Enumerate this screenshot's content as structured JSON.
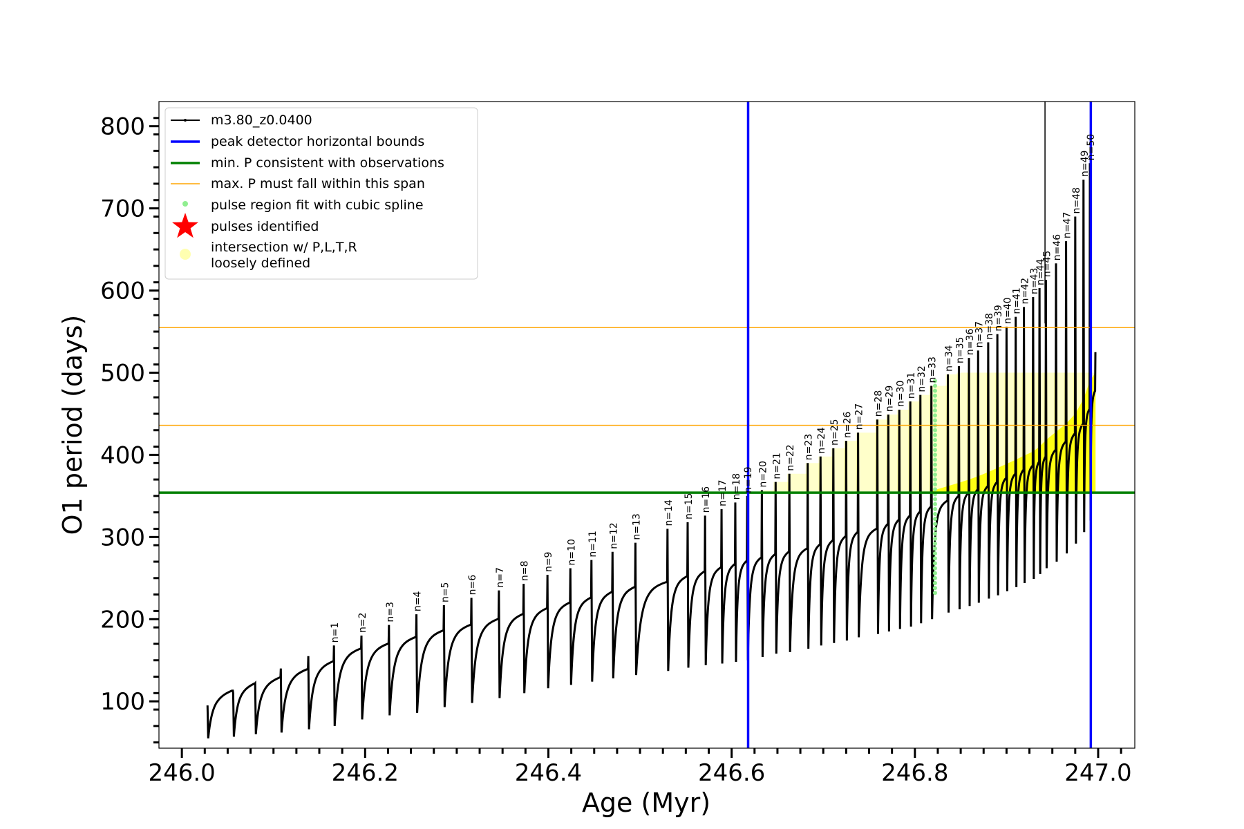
{
  "chart_data": {
    "type": "line",
    "xlabel": "Age (Myr)",
    "ylabel": "O1 period (days)",
    "xlim": [
      245.975,
      247.04
    ],
    "ylim": [
      43,
      830
    ],
    "x_ticks": [
      246.0,
      246.2,
      246.4,
      246.6,
      246.8,
      247.0
    ],
    "x_tick_labels": [
      "246.0",
      "246.2",
      "246.4",
      "246.6",
      "246.8",
      "247.0"
    ],
    "y_ticks": [
      100,
      200,
      300,
      400,
      500,
      600,
      700,
      800
    ],
    "y_tick_labels": [
      "100",
      "200",
      "300",
      "400",
      "500",
      "600",
      "700",
      "800"
    ],
    "grid": false,
    "legend_position": "top-left",
    "legend": [
      {
        "label": "m3.80_z0.0400",
        "kind": "line-marker",
        "color": "#000000"
      },
      {
        "label": "peak detector horizontal bounds",
        "kind": "line",
        "color": "#0000ff"
      },
      {
        "label": "min. P consistent with observations",
        "kind": "line",
        "color": "#008000"
      },
      {
        "label": "max. P must fall within this span",
        "kind": "thin-line",
        "color": "#ffa500"
      },
      {
        "label": "pulse region fit with cubic spline",
        "kind": "dot",
        "color": "#90ee90"
      },
      {
        "label": "pulses identified",
        "kind": "star",
        "color": "#ff0000"
      },
      {
        "label": "intersection w/ P,L,T,R",
        "label2": "loosely defined",
        "kind": "circle",
        "color": "#ffffb0"
      }
    ],
    "vertical_lines": [
      {
        "x": 246.618,
        "color": "#0000ff",
        "role": "peak detector bound"
      },
      {
        "x": 246.992,
        "color": "#0000ff",
        "role": "peak detector bound"
      },
      {
        "x": 246.942,
        "y_from": 560,
        "color": "#000000",
        "role": "track spike"
      }
    ],
    "horizontal_lines": [
      {
        "y": 354,
        "color": "#008000",
        "role": "min P"
      },
      {
        "y": 436,
        "color": "#ffa500",
        "role": "max P lower"
      },
      {
        "y": 555,
        "color": "#ffa500",
        "role": "max P upper"
      }
    ],
    "spline_region": {
      "x": 246.822,
      "y_range": [
        232,
        495
      ],
      "color": "#90ee90"
    },
    "series": [
      {
        "name": "m3.80_z0.0400",
        "color": "#000000",
        "pulses": [
          {
            "n": 1,
            "age": 246.166,
            "peak": 168,
            "base": 70,
            "dip": 136
          },
          {
            "n": 2,
            "age": 246.196,
            "peak": 180,
            "base": 78,
            "dip": 142
          },
          {
            "n": 3,
            "age": 246.226,
            "peak": 193,
            "base": 83,
            "dip": 150
          },
          {
            "n": 4,
            "age": 246.256,
            "peak": 206,
            "base": 86,
            "dip": 158
          },
          {
            "n": 5,
            "age": 246.286,
            "peak": 217,
            "base": 93,
            "dip": 165
          },
          {
            "n": 6,
            "age": 246.316,
            "peak": 226,
            "base": 98,
            "dip": 172
          },
          {
            "n": 7,
            "age": 246.346,
            "peak": 235,
            "base": 104,
            "dip": 178
          },
          {
            "n": 8,
            "age": 246.373,
            "peak": 243,
            "base": 110,
            "dip": 185
          },
          {
            "n": 9,
            "age": 246.399,
            "peak": 254,
            "base": 116,
            "dip": 192
          },
          {
            "n": 10,
            "age": 246.424,
            "peak": 262,
            "base": 120,
            "dip": 198
          },
          {
            "n": 11,
            "age": 246.447,
            "peak": 272,
            "base": 124,
            "dip": 205
          },
          {
            "n": 12,
            "age": 246.47,
            "peak": 282,
            "base": 128,
            "dip": 211
          },
          {
            "n": 13,
            "age": 246.495,
            "peak": 293,
            "base": 132,
            "dip": 217
          },
          {
            "n": 14,
            "age": 246.53,
            "peak": 310,
            "base": 137,
            "dip": 224
          },
          {
            "n": 15,
            "age": 246.552,
            "peak": 318,
            "base": 141,
            "dip": 230
          },
          {
            "n": 16,
            "age": 246.571,
            "peak": 326,
            "base": 144,
            "dip": 235
          },
          {
            "n": 17,
            "age": 246.589,
            "peak": 334,
            "base": 146,
            "dip": 239
          },
          {
            "n": 18,
            "age": 246.604,
            "peak": 342,
            "base": 148,
            "dip": 243
          },
          {
            "n": 19,
            "age": 246.617,
            "peak": 350,
            "base": 150,
            "dip": 247
          },
          {
            "n": 20,
            "age": 246.633,
            "peak": 357,
            "base": 154,
            "dip": 251
          },
          {
            "n": 21,
            "age": 246.648,
            "peak": 367,
            "base": 158,
            "dip": 254
          },
          {
            "n": 22,
            "age": 246.663,
            "peak": 377,
            "base": 160,
            "dip": 258
          },
          {
            "n": 23,
            "age": 246.683,
            "peak": 390,
            "base": 164,
            "dip": 263
          },
          {
            "n": 24,
            "age": 246.697,
            "peak": 398,
            "base": 168,
            "dip": 268
          },
          {
            "n": 25,
            "age": 246.711,
            "peak": 408,
            "base": 171,
            "dip": 273
          },
          {
            "n": 26,
            "age": 246.725,
            "peak": 417,
            "base": 174,
            "dip": 278
          },
          {
            "n": 27,
            "age": 246.738,
            "peak": 427,
            "base": 178,
            "dip": 282
          },
          {
            "n": 28,
            "age": 246.759,
            "peak": 443,
            "base": 182,
            "dip": 288
          },
          {
            "n": 29,
            "age": 246.771,
            "peak": 449,
            "base": 185,
            "dip": 293
          },
          {
            "n": 30,
            "age": 246.783,
            "peak": 455,
            "base": 188,
            "dip": 298
          },
          {
            "n": 31,
            "age": 246.795,
            "peak": 465,
            "base": 191,
            "dip": 303
          },
          {
            "n": 32,
            "age": 246.806,
            "peak": 473,
            "base": 195,
            "dip": 309
          },
          {
            "n": 33,
            "age": 246.818,
            "peak": 484,
            "base": 200,
            "dip": 316
          },
          {
            "n": 34,
            "age": 246.836,
            "peak": 498,
            "base": 208,
            "dip": 322
          },
          {
            "n": 35,
            "age": 246.848,
            "peak": 508,
            "base": 212,
            "dip": 326
          },
          {
            "n": 36,
            "age": 246.859,
            "peak": 518,
            "base": 216,
            "dip": 330
          },
          {
            "n": 37,
            "age": 246.869,
            "peak": 527,
            "base": 220,
            "dip": 334
          },
          {
            "n": 38,
            "age": 246.88,
            "peak": 537,
            "base": 225,
            "dip": 339
          },
          {
            "n": 39,
            "age": 246.89,
            "peak": 547,
            "base": 229,
            "dip": 344
          },
          {
            "n": 40,
            "age": 246.9,
            "peak": 556,
            "base": 234,
            "dip": 349
          },
          {
            "n": 41,
            "age": 246.91,
            "peak": 568,
            "base": 239,
            "dip": 354
          },
          {
            "n": 42,
            "age": 246.919,
            "peak": 580,
            "base": 244,
            "dip": 359
          },
          {
            "n": 43,
            "age": 246.929,
            "peak": 592,
            "base": 249,
            "dip": 364
          },
          {
            "n": 44,
            "age": 246.936,
            "peak": 603,
            "base": 255,
            "dip": 370
          },
          {
            "n": 45,
            "age": 246.943,
            "peak": 613,
            "base": 262,
            "dip": 378
          },
          {
            "n": 46,
            "age": 246.954,
            "peak": 633,
            "base": 270,
            "dip": 388
          },
          {
            "n": 47,
            "age": 246.965,
            "peak": 660,
            "base": 280,
            "dip": 398
          },
          {
            "n": 48,
            "age": 246.975,
            "peak": 690,
            "base": 292,
            "dip": 410
          },
          {
            "n": 49,
            "age": 246.984,
            "peak": 735,
            "base": 306,
            "dip": 428
          },
          {
            "n": 50,
            "age": 246.991,
            "peak": 755,
            "base": 320,
            "dip": 450
          }
        ],
        "early_cycles": [
          {
            "age": 246.028,
            "peak": 95,
            "base": 55
          },
          {
            "age": 246.056,
            "peak": 110,
            "base": 57
          },
          {
            "age": 246.08,
            "peak": 122,
            "base": 60
          },
          {
            "age": 246.108,
            "peak": 140,
            "base": 62
          },
          {
            "age": 246.138,
            "peak": 155,
            "base": 66
          }
        ],
        "end_point": {
          "age": 246.997,
          "value": 525
        }
      }
    ]
  }
}
